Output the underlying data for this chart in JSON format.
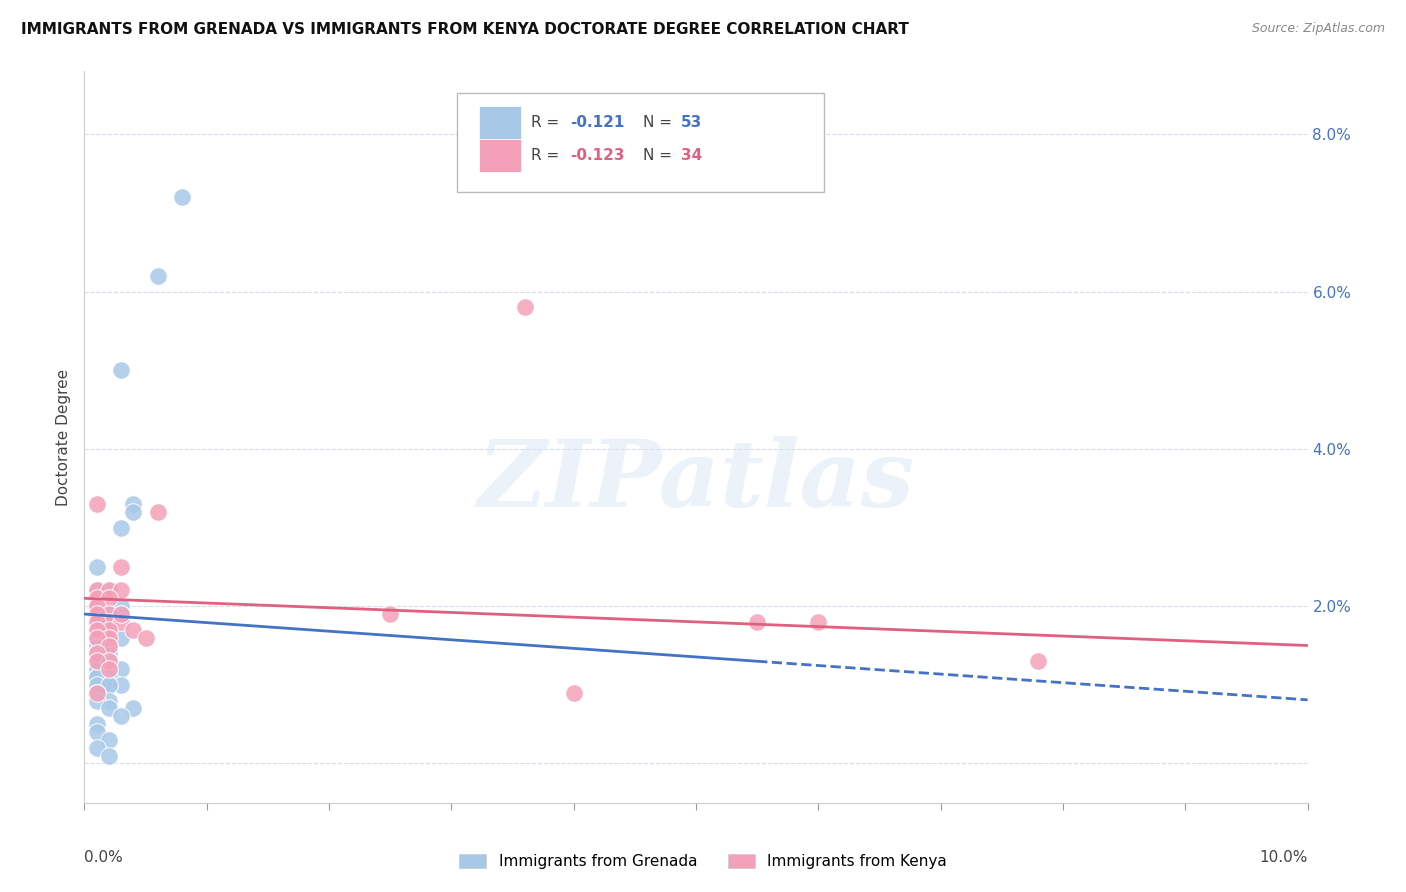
{
  "title": "IMMIGRANTS FROM GRENADA VS IMMIGRANTS FROM KENYA DOCTORATE DEGREE CORRELATION CHART",
  "source": "Source: ZipAtlas.com",
  "ylabel": "Doctorate Degree",
  "xlim": [
    0.0,
    0.1
  ],
  "ylim": [
    -0.005,
    0.088
  ],
  "right_yticks": [
    0.0,
    0.02,
    0.04,
    0.06,
    0.08
  ],
  "right_yticklabels": [
    "",
    "2.0%",
    "4.0%",
    "6.0%",
    "8.0%"
  ],
  "grenada_color": "#a8c8e8",
  "kenya_color": "#f4a0b8",
  "trend_grenada_color": "#4472c4",
  "trend_kenya_color": "#e06080",
  "background_color": "#ffffff",
  "grid_color": "#d0d8e8",
  "watermark_text": "ZIPatlas",
  "title_fontsize": 11,
  "grenada_r": "-0.121",
  "grenada_n": "53",
  "kenya_r": "-0.123",
  "kenya_n": "34",
  "grenada_x": [
    0.008,
    0.006,
    0.003,
    0.004,
    0.003,
    0.004,
    0.001,
    0.002,
    0.001,
    0.003,
    0.001,
    0.002,
    0.003,
    0.002,
    0.001,
    0.001,
    0.002,
    0.001,
    0.003,
    0.001,
    0.002,
    0.001,
    0.001,
    0.002,
    0.001,
    0.001,
    0.002,
    0.001,
    0.002,
    0.001,
    0.001,
    0.002,
    0.003,
    0.001,
    0.002,
    0.001,
    0.001,
    0.002,
    0.003,
    0.001,
    0.002,
    0.001,
    0.001,
    0.002,
    0.001,
    0.004,
    0.002,
    0.003,
    0.001,
    0.001,
    0.002,
    0.001,
    0.002
  ],
  "grenada_y": [
    0.072,
    0.062,
    0.05,
    0.033,
    0.03,
    0.032,
    0.025,
    0.022,
    0.022,
    0.02,
    0.019,
    0.019,
    0.019,
    0.018,
    0.018,
    0.017,
    0.017,
    0.016,
    0.016,
    0.016,
    0.015,
    0.015,
    0.015,
    0.014,
    0.014,
    0.014,
    0.013,
    0.013,
    0.013,
    0.012,
    0.012,
    0.012,
    0.012,
    0.011,
    0.011,
    0.011,
    0.011,
    0.01,
    0.01,
    0.01,
    0.01,
    0.009,
    0.009,
    0.008,
    0.008,
    0.007,
    0.007,
    0.006,
    0.005,
    0.004,
    0.003,
    0.002,
    0.001
  ],
  "kenya_x": [
    0.001,
    0.002,
    0.001,
    0.003,
    0.001,
    0.002,
    0.001,
    0.002,
    0.001,
    0.002,
    0.001,
    0.003,
    0.002,
    0.004,
    0.001,
    0.002,
    0.001,
    0.003,
    0.002,
    0.005,
    0.001,
    0.002,
    0.001,
    0.036,
    0.001,
    0.002,
    0.003,
    0.025,
    0.001,
    0.006,
    0.06,
    0.078,
    0.055,
    0.04
  ],
  "kenya_y": [
    0.022,
    0.022,
    0.021,
    0.022,
    0.02,
    0.021,
    0.02,
    0.019,
    0.019,
    0.018,
    0.018,
    0.018,
    0.017,
    0.017,
    0.017,
    0.016,
    0.016,
    0.025,
    0.015,
    0.016,
    0.014,
    0.013,
    0.033,
    0.058,
    0.013,
    0.012,
    0.019,
    0.019,
    0.009,
    0.032,
    0.018,
    0.013,
    0.018,
    0.009
  ],
  "trend_grenada_x0": 0.0,
  "trend_grenada_y0": 0.019,
  "trend_grenada_x1": 0.055,
  "trend_grenada_y1": 0.013,
  "trend_grenada_dash_x0": 0.055,
  "trend_grenada_dash_x1": 0.1,
  "trend_grenada_dash_y1": -0.001,
  "trend_kenya_x0": 0.0,
  "trend_kenya_y0": 0.021,
  "trend_kenya_x1": 0.1,
  "trend_kenya_y1": 0.015
}
